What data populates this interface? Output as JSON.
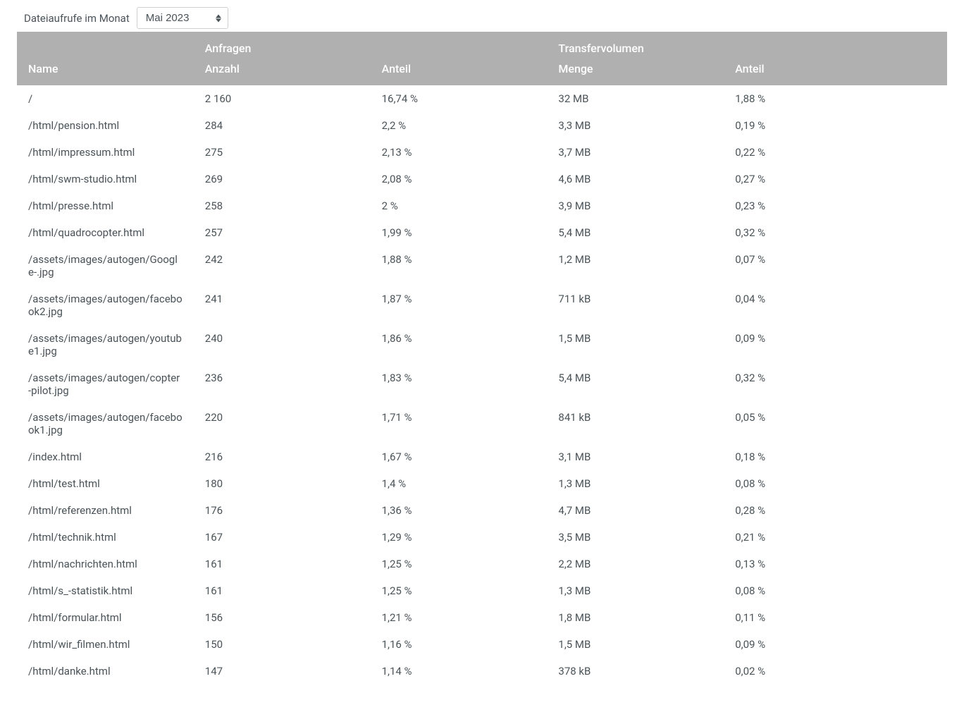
{
  "header": {
    "label": "Dateiaufrufe im Monat",
    "select_value": "Mai 2023"
  },
  "table": {
    "group_headers": {
      "requests": "Anfragen",
      "transfer": "Transfervolumen"
    },
    "columns": {
      "name": "Name",
      "count": "Anzahl",
      "share1": "Anteil",
      "amount": "Menge",
      "share2": "Anteil"
    },
    "rows": [
      {
        "name": "/",
        "count": "2 160",
        "share1": "16,74 %",
        "amount": "32 MB",
        "share2": "1,88 %"
      },
      {
        "name": "/html/pension.html",
        "count": "284",
        "share1": "2,2 %",
        "amount": "3,3 MB",
        "share2": "0,19 %"
      },
      {
        "name": "/html/impressum.html",
        "count": "275",
        "share1": "2,13 %",
        "amount": "3,7 MB",
        "share2": "0,22 %"
      },
      {
        "name": "/html/swm-studio.html",
        "count": "269",
        "share1": "2,08 %",
        "amount": "4,6 MB",
        "share2": "0,27 %"
      },
      {
        "name": "/html/presse.html",
        "count": "258",
        "share1": "2 %",
        "amount": "3,9 MB",
        "share2": "0,23 %"
      },
      {
        "name": "/html/quadrocopter.html",
        "count": "257",
        "share1": "1,99 %",
        "amount": "5,4 MB",
        "share2": "0,32 %"
      },
      {
        "name": "/assets/images/autogen/Google-.jpg",
        "count": "242",
        "share1": "1,88 %",
        "amount": "1,2 MB",
        "share2": "0,07 %"
      },
      {
        "name": "/assets/images/autogen/facebook2.jpg",
        "count": "241",
        "share1": "1,87 %",
        "amount": "711 kB",
        "share2": "0,04 %"
      },
      {
        "name": "/assets/images/autogen/youtube1.jpg",
        "count": "240",
        "share1": "1,86 %",
        "amount": "1,5 MB",
        "share2": "0,09 %"
      },
      {
        "name": "/assets/images/autogen/copter-pilot.jpg",
        "count": "236",
        "share1": "1,83 %",
        "amount": "5,4 MB",
        "share2": "0,32 %"
      },
      {
        "name": "/assets/images/autogen/facebook1.jpg",
        "count": "220",
        "share1": "1,71 %",
        "amount": "841 kB",
        "share2": "0,05 %"
      },
      {
        "name": "/index.html",
        "count": "216",
        "share1": "1,67 %",
        "amount": "3,1 MB",
        "share2": "0,18 %"
      },
      {
        "name": "/html/test.html",
        "count": "180",
        "share1": "1,4 %",
        "amount": "1,3 MB",
        "share2": "0,08 %"
      },
      {
        "name": "/html/referenzen.html",
        "count": "176",
        "share1": "1,36 %",
        "amount": "4,7 MB",
        "share2": "0,28 %"
      },
      {
        "name": "/html/technik.html",
        "count": "167",
        "share1": "1,29 %",
        "amount": "3,5 MB",
        "share2": "0,21 %"
      },
      {
        "name": "/html/nachrichten.html",
        "count": "161",
        "share1": "1,25 %",
        "amount": "2,2 MB",
        "share2": "0,13 %"
      },
      {
        "name": "/html/s_-statistik.html",
        "count": "161",
        "share1": "1,25 %",
        "amount": "1,3 MB",
        "share2": "0,08 %"
      },
      {
        "name": "/html/formular.html",
        "count": "156",
        "share1": "1,21 %",
        "amount": "1,8 MB",
        "share2": "0,11 %"
      },
      {
        "name": "/html/wir_filmen.html",
        "count": "150",
        "share1": "1,16 %",
        "amount": "1,5 MB",
        "share2": "0,09 %"
      },
      {
        "name": "/html/danke.html",
        "count": "147",
        "share1": "1,14 %",
        "amount": "378 kB",
        "share2": "0,02 %"
      }
    ]
  },
  "colors": {
    "header_bg": "#b0b0b0",
    "header_text": "#ffffff",
    "body_text": "#4a5358",
    "border": "#d0d0d0"
  }
}
